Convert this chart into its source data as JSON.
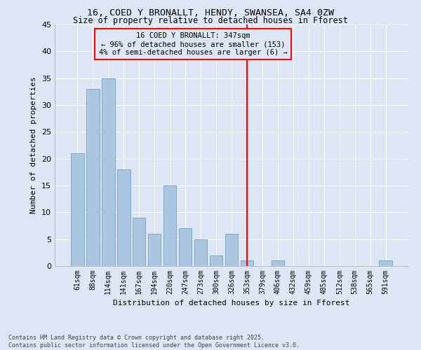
{
  "title1": "16, COED Y BRONALLT, HENDY, SWANSEA, SA4 0ZW",
  "title2": "Size of property relative to detached houses in Fforest",
  "xlabel": "Distribution of detached houses by size in Fforest",
  "ylabel": "Number of detached properties",
  "categories": [
    "61sqm",
    "88sqm",
    "114sqm",
    "141sqm",
    "167sqm",
    "194sqm",
    "220sqm",
    "247sqm",
    "273sqm",
    "300sqm",
    "326sqm",
    "353sqm",
    "379sqm",
    "406sqm",
    "432sqm",
    "459sqm",
    "485sqm",
    "512sqm",
    "538sqm",
    "565sqm",
    "591sqm"
  ],
  "values": [
    21,
    33,
    35,
    18,
    9,
    6,
    15,
    7,
    5,
    2,
    6,
    1,
    0,
    1,
    0,
    0,
    0,
    0,
    0,
    0,
    1
  ],
  "bar_color": "#adc6e0",
  "bar_edge_color": "#7aaac8",
  "property_line_color": "red",
  "annotation_title": "16 COED Y BRONALLT: 347sqm",
  "annotation_line1": "← 96% of detached houses are smaller (153)",
  "annotation_line2": "4% of semi-detached houses are larger (6) →",
  "annotation_box_color": "red",
  "background_color": "#dce6f5",
  "ylim": [
    0,
    45
  ],
  "yticks": [
    0,
    5,
    10,
    15,
    20,
    25,
    30,
    35,
    40,
    45
  ],
  "footnote1": "Contains HM Land Registry data © Crown copyright and database right 2025.",
  "footnote2": "Contains public sector information licensed under the Open Government Licence v3.0."
}
